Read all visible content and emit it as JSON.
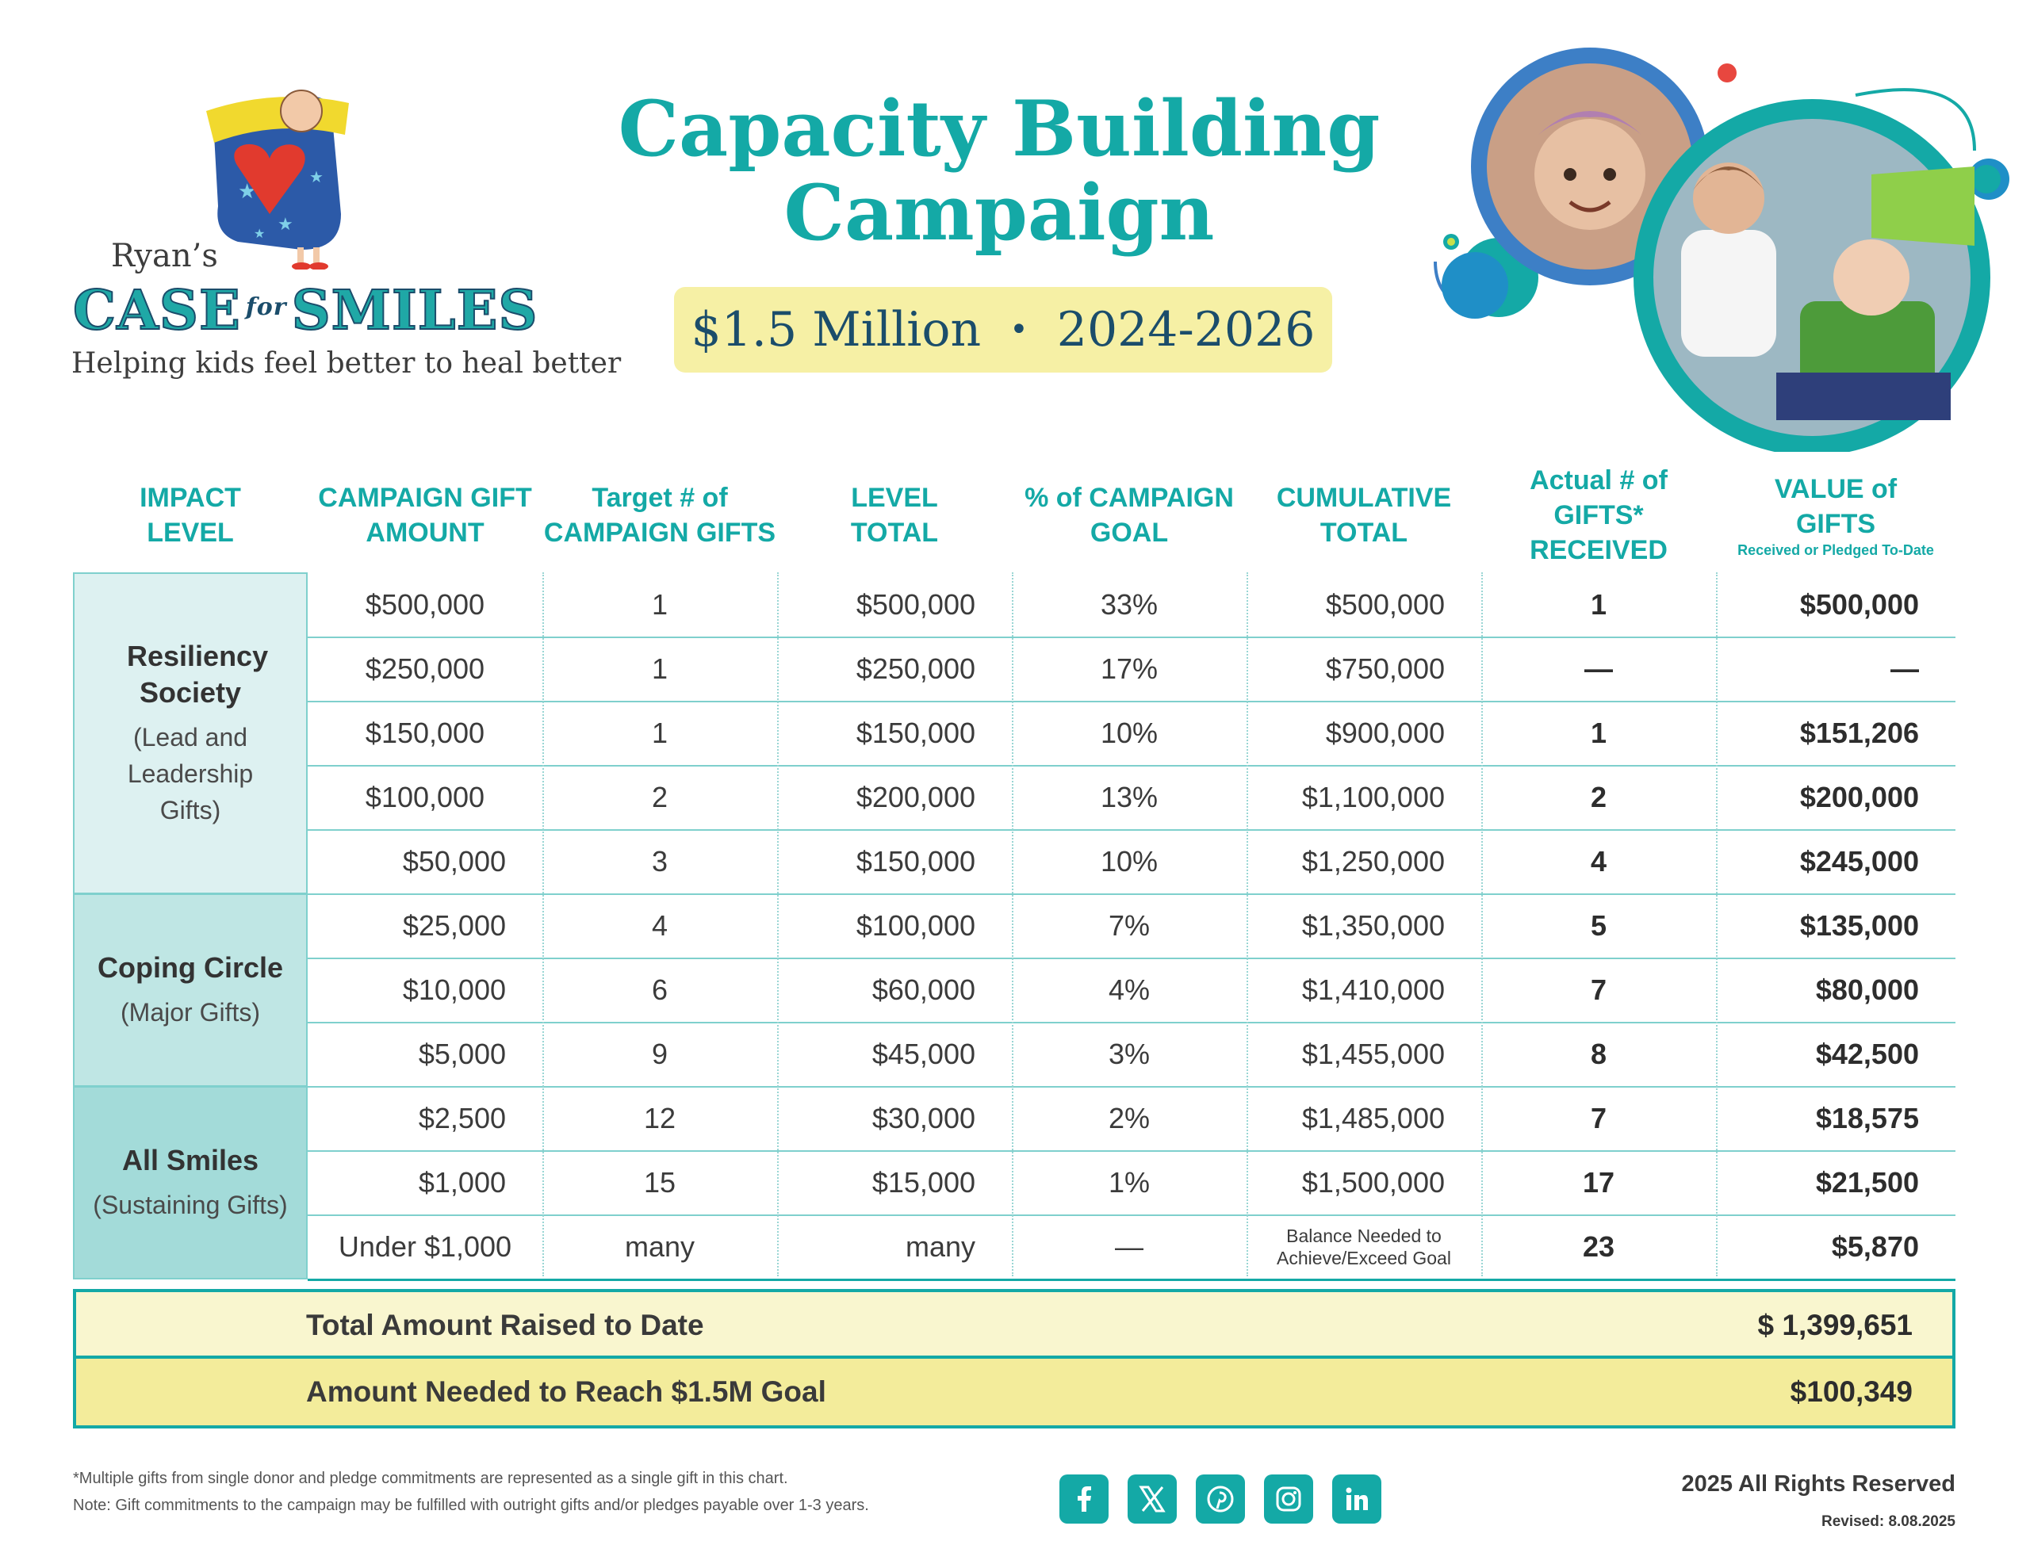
{
  "logo": {
    "ryans": "Ryan’s",
    "case": "CASE",
    "for": "for",
    "smiles": "SMILES",
    "tagline": "Helping kids feel better to heal better"
  },
  "title": {
    "line1": "Capacity Building",
    "line2": "Campaign"
  },
  "banner": {
    "amount": "$1.5 Million",
    "dot": "•",
    "years": "2024-2026"
  },
  "table": {
    "headers": {
      "impact": [
        "IMPACT",
        "LEVEL"
      ],
      "gift": [
        "CAMPAIGN GIFT",
        "AMOUNT"
      ],
      "target": [
        "Target # of",
        "CAMPAIGN GIFTS"
      ],
      "level_total": [
        "LEVEL",
        "TOTAL"
      ],
      "pct": [
        "% of CAMPAIGN",
        "GOAL"
      ],
      "cumulative": [
        "CUMULATIVE",
        "TOTAL"
      ],
      "actual": [
        "Actual # of",
        "GIFTS* RECEIVED"
      ],
      "value": [
        "VALUE of",
        "GIFTS"
      ],
      "value_sub": "Received or Pledged To-Date"
    },
    "levels": [
      {
        "name": "Resiliency Society",
        "desc": "(Lead and Leadership Gifts)",
        "color": "#ddf1f1"
      },
      {
        "name": "Coping Circle",
        "desc": "(Major Gifts)",
        "color": "#bfe6e4"
      },
      {
        "name": "All Smiles",
        "desc": "(Sustaining Gifts)",
        "color": "#a3dbd9"
      }
    ],
    "rows": [
      {
        "gift": "$500,000",
        "target": "1",
        "level_total": "$500,000",
        "pct": "33%",
        "cumulative": "$500,000",
        "actual": "1",
        "value": "$500,000"
      },
      {
        "gift": "$250,000",
        "target": "1",
        "level_total": "$250,000",
        "pct": "17%",
        "cumulative": "$750,000",
        "actual": "—",
        "value": "—"
      },
      {
        "gift": "$150,000",
        "target": "1",
        "level_total": "$150,000",
        "pct": "10%",
        "cumulative": "$900,000",
        "actual": "1",
        "value": "$151,206"
      },
      {
        "gift": "$100,000",
        "target": "2",
        "level_total": "$200,000",
        "pct": "13%",
        "cumulative": "$1,100,000",
        "actual": "2",
        "value": "$200,000"
      },
      {
        "gift": "$50,000",
        "target": "3",
        "level_total": "$150,000",
        "pct": "10%",
        "cumulative": "$1,250,000",
        "actual": "4",
        "value": "$245,000"
      },
      {
        "gift": "$25,000",
        "target": "4",
        "level_total": "$100,000",
        "pct": "7%",
        "cumulative": "$1,350,000",
        "actual": "5",
        "value": "$135,000"
      },
      {
        "gift": "$10,000",
        "target": "6",
        "level_total": "$60,000",
        "pct": "4%",
        "cumulative": "$1,410,000",
        "actual": "7",
        "value": "$80,000"
      },
      {
        "gift": "$5,000",
        "target": "9",
        "level_total": "$45,000",
        "pct": "3%",
        "cumulative": "$1,455,000",
        "actual": "8",
        "value": "$42,500"
      },
      {
        "gift": "$2,500",
        "target": "12",
        "level_total": "$30,000",
        "pct": "2%",
        "cumulative": "$1,485,000",
        "actual": "7",
        "value": "$18,575"
      },
      {
        "gift": "$1,000",
        "target": "15",
        "level_total": "$15,000",
        "pct": "1%",
        "cumulative": "$1,500,000",
        "actual": "17",
        "value": "$21,500"
      },
      {
        "gift": "Under $1,000",
        "target": "many",
        "level_total": "many",
        "pct": "—",
        "cumulative": "Balance Needed to Achieve/Exceed Goal",
        "actual": "23",
        "value": "$5,870"
      }
    ]
  },
  "totals": {
    "raised_label": "Total Amount Raised to Date",
    "raised_value": "$ 1,399,651",
    "needed_label": "Amount Needed to Reach $1.5M Goal",
    "needed_value": "$100,349"
  },
  "footer": {
    "note1": "*Multiple gifts from single donor and pledge commitments are represented as a single gift in this chart.",
    "note2": "Note: Gift commitments to the campaign may be fulfilled with outright gifts and/or pledges payable over 1-3 years.",
    "socials": [
      "facebook-icon",
      "x-icon",
      "pinterest-icon",
      "instagram-icon",
      "linkedin-icon"
    ],
    "rights": "2025 All Rights Reserved",
    "revised": "Revised:  8.08.2025"
  },
  "colors": {
    "teal": "#14a9a6",
    "navy": "#1b4d6b",
    "yellow": "#f6f0a5",
    "red": "#e8473f",
    "blue": "#3d7fc6"
  }
}
